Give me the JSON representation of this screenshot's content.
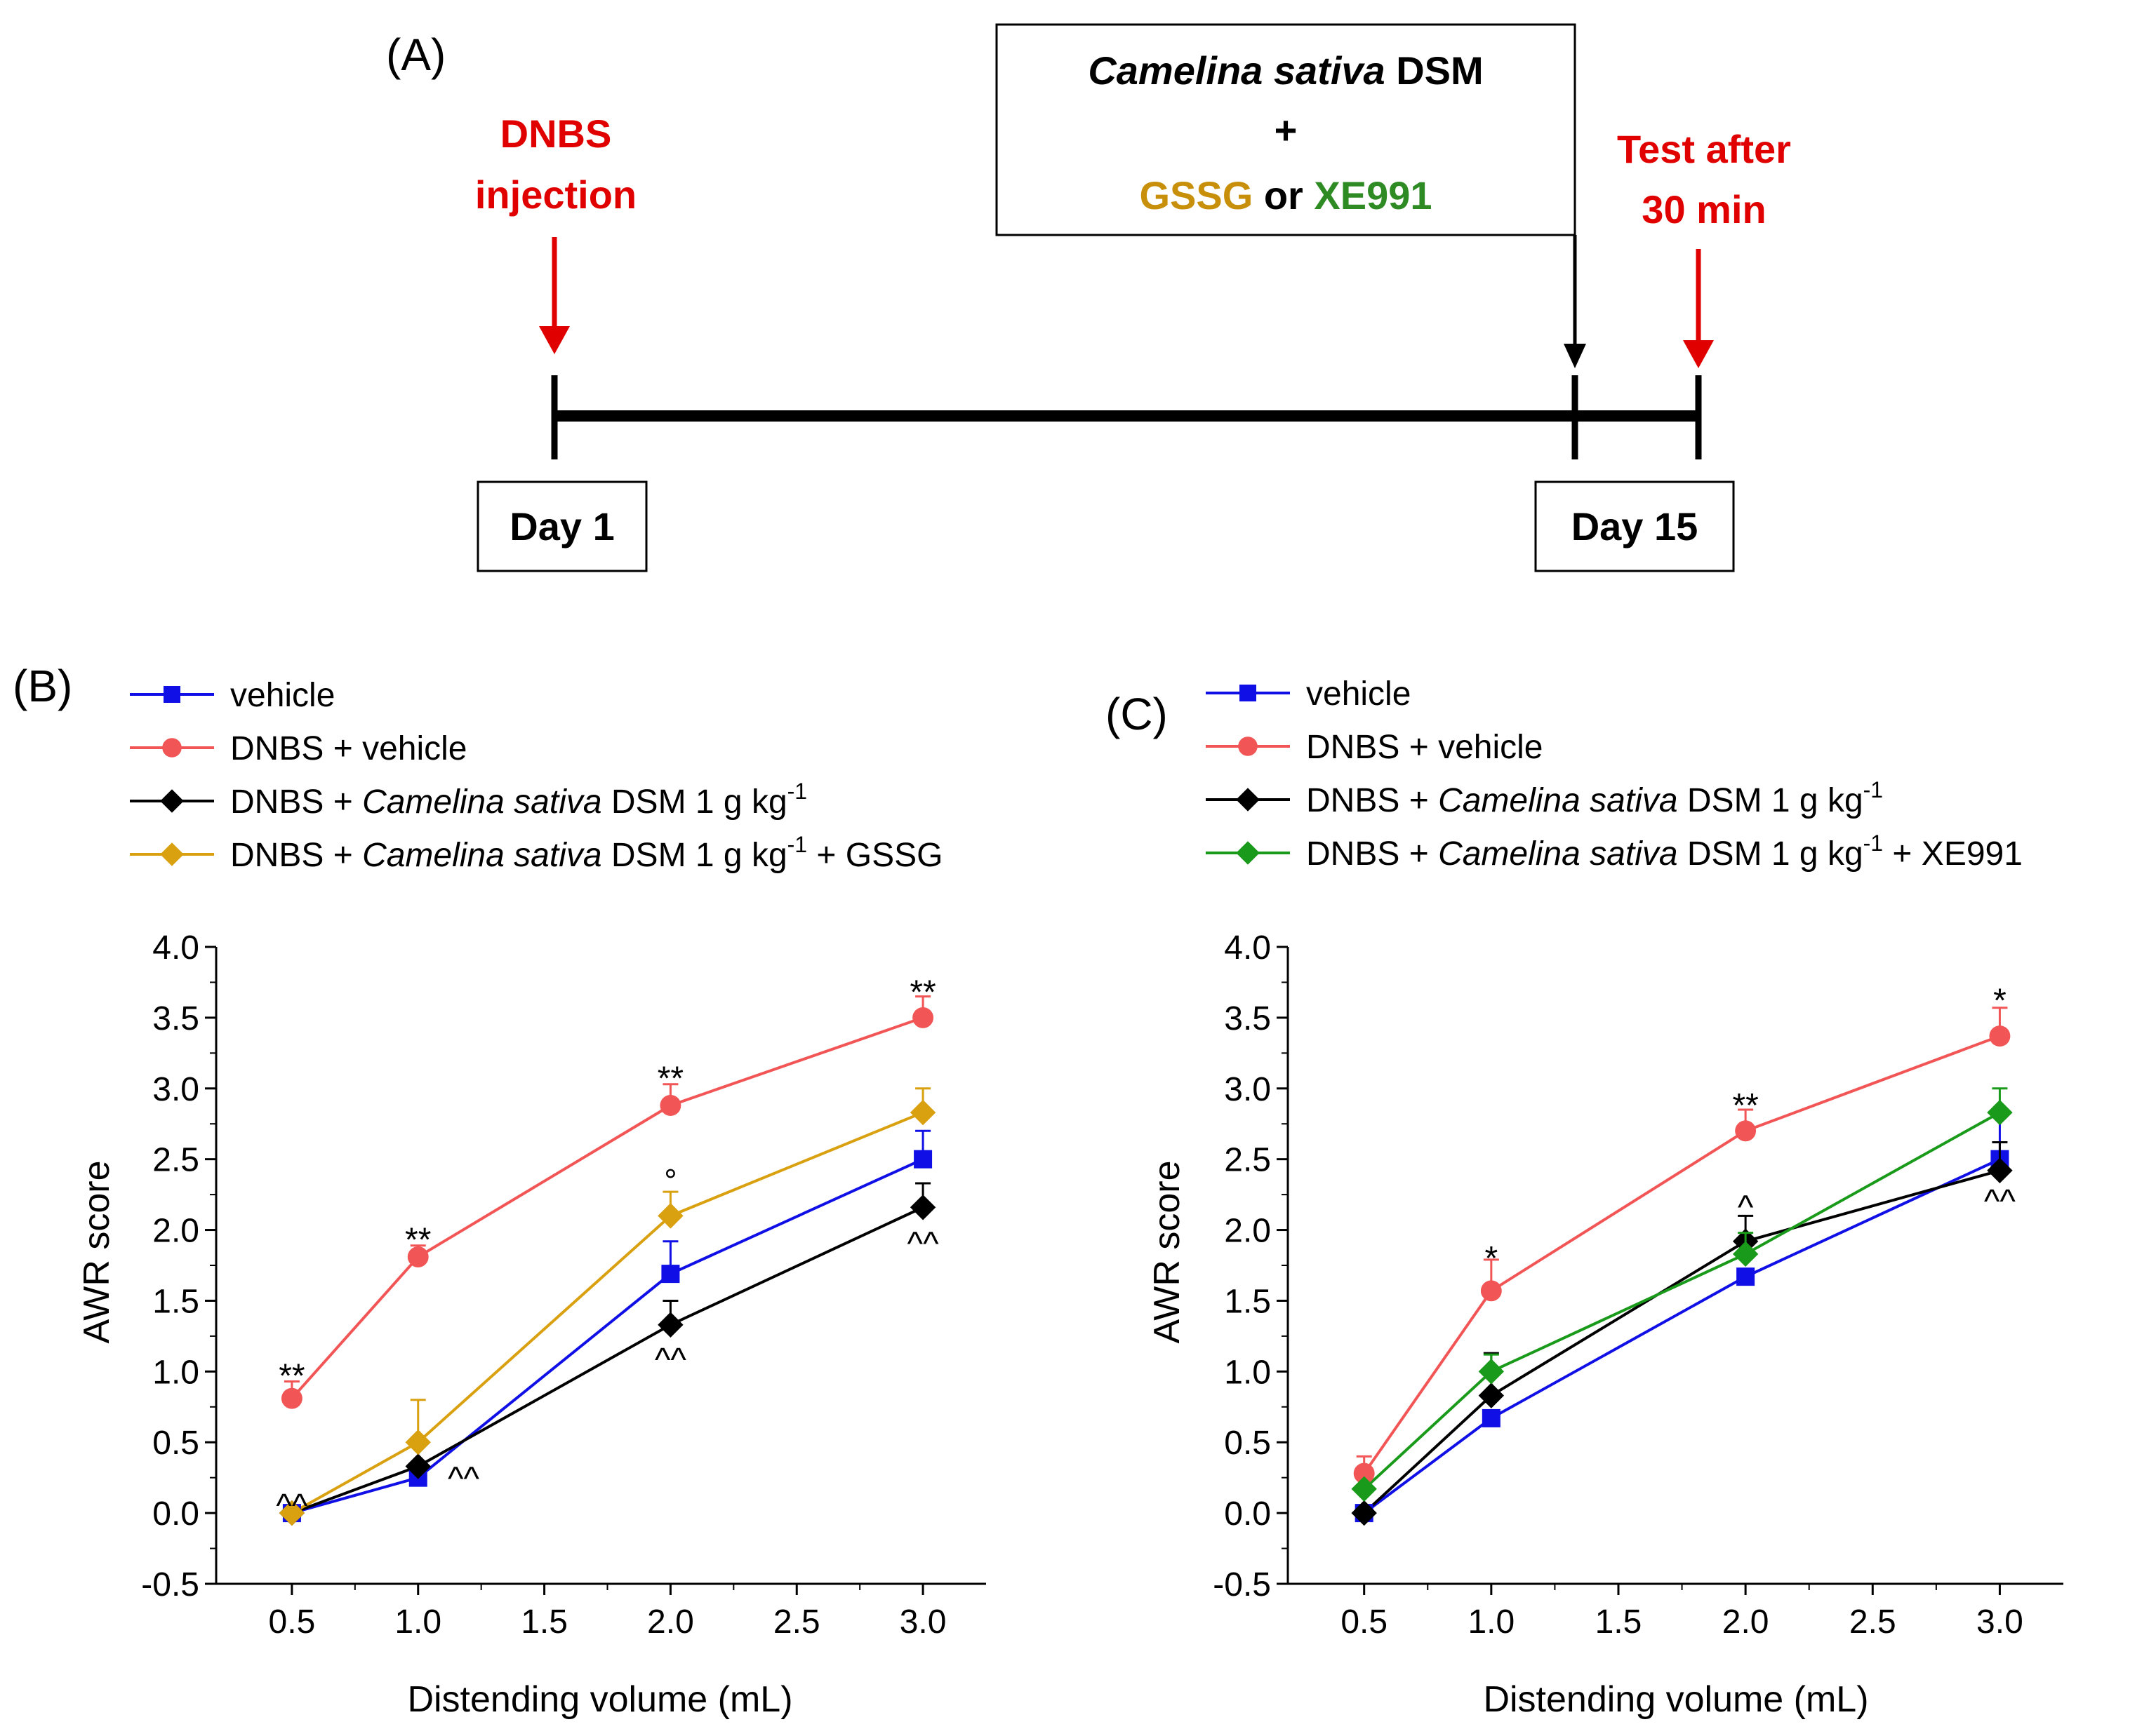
{
  "panel_a": {
    "label": "(A)",
    "dnbs_line1": "DNBS",
    "dnbs_line2": "injection",
    "treat_italic": "Camelina sativa",
    "treat_rest": " DSM",
    "treat_plus": "+",
    "treat_gssg": "GSSG",
    "treat_or": " or ",
    "treat_xe": "XE991",
    "test_line1": "Test after",
    "test_line2": "30 min",
    "day1": "Day 1",
    "day15": "Day 15",
    "colors": {
      "red": "#e00000",
      "gold": "#c8900a",
      "green": "#2e8b24",
      "black": "#000000"
    }
  },
  "chart_data": [
    {
      "type": "line",
      "panel": "(B)",
      "xlabel": "Distending volume (mL)",
      "ylabel": "AWR score",
      "xlim": [
        0.2,
        3.25
      ],
      "ylim": [
        -0.5,
        4.0
      ],
      "xticks": [
        "0.5",
        "1.0",
        "1.5",
        "2.0",
        "2.5",
        "3.0"
      ],
      "yticks": [
        "-0.5",
        "0.0",
        "0.5",
        "1.0",
        "1.5",
        "2.0",
        "2.5",
        "3.0",
        "3.5",
        "4.0"
      ],
      "x": [
        0.5,
        1.0,
        2.0,
        3.0
      ],
      "legend": [
        {
          "label": "vehicle"
        },
        {
          "label": "DNBS + vehicle"
        },
        {
          "pre": "DNBS + ",
          "it": "Camelina sativa",
          "post": " DSM 1 g kg",
          "sup": "-1",
          "tail": ""
        },
        {
          "pre": "DNBS + ",
          "it": "Camelina sativa",
          "post": " DSM 1 g kg",
          "sup": "-1",
          "tail": " + GSSG"
        }
      ],
      "series": [
        {
          "name": "vehicle",
          "color": "#1010e6",
          "marker": "square",
          "values": [
            0.0,
            0.25,
            1.69,
            2.5
          ],
          "err": [
            0.03,
            0.05,
            0.23,
            0.2
          ]
        },
        {
          "name": "DNBS + vehicle",
          "color": "#f25555",
          "marker": "circle",
          "values": [
            0.81,
            1.81,
            2.88,
            3.5
          ],
          "err": [
            0.12,
            0.08,
            0.15,
            0.15
          ]
        },
        {
          "name": "DNBS + Camelina sativa DSM 1 g kg-1",
          "color": "#000000",
          "marker": "diamond",
          "values": [
            0.0,
            0.33,
            1.33,
            2.16
          ],
          "err": [
            0.0,
            0.17,
            0.17,
            0.17
          ]
        },
        {
          "name": "DNBS + Camelina sativa DSM 1 g kg-1 + GSSG",
          "color": "#d9a010",
          "marker": "diamond",
          "values": [
            0.0,
            0.5,
            2.1,
            2.83
          ],
          "err": [
            0.0,
            0.3,
            0.17,
            0.17
          ]
        }
      ],
      "annotations": [
        {
          "text": "**",
          "x": 0.5,
          "y": 0.97
        },
        {
          "text": "^^",
          "x": 0.5,
          "y": 0.05
        },
        {
          "text": "**",
          "x": 1.0,
          "y": 1.93
        },
        {
          "text": "^^",
          "x": 1.18,
          "y": 0.24
        },
        {
          "text": "**",
          "x": 2.0,
          "y": 3.07
        },
        {
          "text": "°",
          "x": 2.0,
          "y": 2.35
        },
        {
          "text": "^^",
          "x": 2.0,
          "y": 1.08
        },
        {
          "text": "**",
          "x": 3.0,
          "y": 3.68
        },
        {
          "text": "^^",
          "x": 3.0,
          "y": 1.9
        }
      ]
    },
    {
      "type": "line",
      "panel": "(C)",
      "xlabel": "Distending volume (mL)",
      "ylabel": "AWR score",
      "xlim": [
        0.2,
        3.25
      ],
      "ylim": [
        -0.5,
        4.0
      ],
      "xticks": [
        "0.5",
        "1.0",
        "1.5",
        "2.0",
        "2.5",
        "3.0"
      ],
      "yticks": [
        "-0.5",
        "0.0",
        "0.5",
        "1.0",
        "1.5",
        "2.0",
        "2.5",
        "3.0",
        "3.5",
        "4.0"
      ],
      "x": [
        0.5,
        1.0,
        2.0,
        3.0
      ],
      "legend": [
        {
          "label": "vehicle"
        },
        {
          "label": "DNBS + vehicle"
        },
        {
          "pre": "DNBS + ",
          "it": "Camelina sativa",
          "post": " DSM 1 g kg",
          "sup": "-1",
          "tail": ""
        },
        {
          "pre": "DNBS + ",
          "it": "Camelina sativa",
          "post": " DSM 1 g kg",
          "sup": "-1",
          "tail": " + XE991"
        }
      ],
      "series": [
        {
          "name": "vehicle",
          "color": "#1010e6",
          "marker": "square",
          "values": [
            0.0,
            0.67,
            1.67,
            2.5
          ],
          "err": [
            0.03,
            0.05,
            0.05,
            0.3
          ]
        },
        {
          "name": "DNBS + vehicle",
          "color": "#f25555",
          "marker": "circle",
          "values": [
            0.28,
            1.57,
            2.7,
            3.37
          ],
          "err": [
            0.12,
            0.22,
            0.15,
            0.2
          ]
        },
        {
          "name": "DNBS + Camelina sativa DSM 1 g kg-1",
          "color": "#000000",
          "marker": "diamond",
          "values": [
            0.0,
            0.83,
            1.92,
            2.42
          ],
          "err": [
            0.0,
            0.3,
            0.18,
            0.2
          ]
        },
        {
          "name": "DNBS + Camelina sativa DSM 1 g kg-1 + XE991",
          "color": "#1a9a1a",
          "marker": "diamond",
          "values": [
            0.17,
            1.0,
            1.83,
            2.83
          ],
          "err": [
            0.0,
            0.12,
            0.15,
            0.17
          ]
        }
      ],
      "annotations": [
        {
          "text": "*",
          "x": 1.0,
          "y": 1.8
        },
        {
          "text": "**",
          "x": 2.0,
          "y": 2.88
        },
        {
          "text": "^",
          "x": 2.0,
          "y": 2.16
        },
        {
          "text": "*",
          "x": 3.0,
          "y": 3.62
        },
        {
          "text": "^^",
          "x": 3.0,
          "y": 2.2
        }
      ]
    }
  ]
}
